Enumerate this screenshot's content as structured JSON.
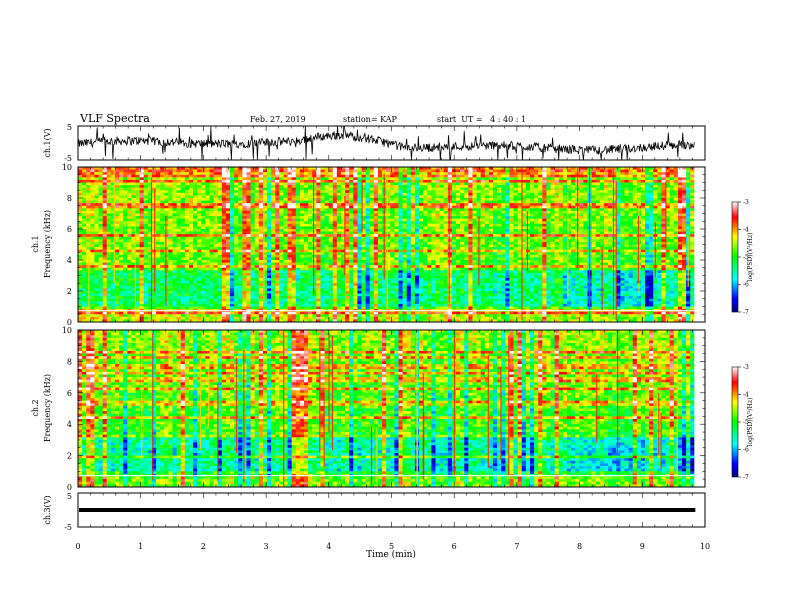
{
  "header": {
    "title": "VLF Spectra",
    "date": "Feb. 27, 2019",
    "station": "station= KAP",
    "start_ut": "start  UT =   4 : 40 : 1"
  },
  "chart_data": [
    {
      "type": "line",
      "panel": "ch1-voltage",
      "ylabel": "ch.1(V)",
      "ylim": [
        -5,
        5
      ],
      "yticks": [
        "5",
        "-5"
      ],
      "x_range_min": [
        0,
        9.83
      ],
      "description_of_trace": "noisy black waveform around 0 V, with a hump near 3.5–5 min"
    },
    {
      "type": "heatmap",
      "panel": "ch1-spectrogram",
      "ylabel": "ch.1\nFrequency (kHz)",
      "ylim": [
        0,
        10
      ],
      "yticks": [
        "0",
        "2",
        "4",
        "6",
        "8",
        "10"
      ],
      "x_range_min": [
        0,
        9.83
      ]
    },
    {
      "type": "heatmap",
      "panel": "ch2-spectrogram",
      "ylabel": "ch.2\nFrequency (kHz)",
      "ylim": [
        0,
        10
      ],
      "yticks": [
        "0",
        "2",
        "4",
        "6",
        "8",
        "10"
      ],
      "x_range_min": [
        0,
        9.83
      ]
    },
    {
      "type": "line",
      "panel": "ch3-voltage",
      "ylabel": "ch.3(V)",
      "ylim": [
        -5,
        5
      ],
      "yticks": [
        "5",
        "-5"
      ],
      "constant_value_v": 0,
      "x_range_min": [
        0,
        9.83
      ]
    }
  ],
  "x_axis": {
    "label": "Time (min)",
    "range": [
      0,
      10
    ],
    "ticks": [
      "0",
      "1",
      "2",
      "3",
      "4",
      "5",
      "6",
      "7",
      "8",
      "9",
      "10"
    ]
  },
  "colorbar": {
    "label": "log(PSD)(V²/Hz)",
    "range": [
      -7,
      -3
    ],
    "ticks": [
      "-3",
      "-4",
      "-5",
      "-6",
      "-7"
    ],
    "colormap": [
      "#000080",
      "#0000ff",
      "#00ffff",
      "#00ff00",
      "#ffff00",
      "#ff0000",
      "#ffffff"
    ]
  }
}
